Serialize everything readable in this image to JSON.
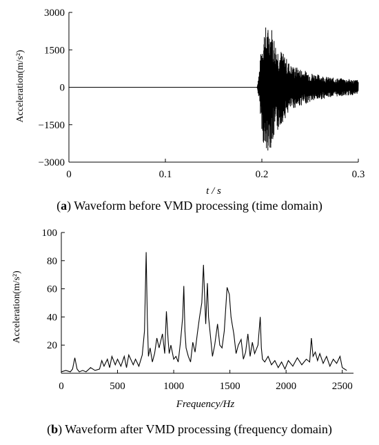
{
  "chart_data": [
    {
      "type": "line",
      "panel": "a",
      "caption_label": "a",
      "caption_text": "Waveform before VMD processing (time domain)",
      "xlabel": "t / s",
      "ylabel": "Acceleration(m/s²)",
      "xlim": [
        0,
        0.3
      ],
      "ylim": [
        -3000,
        3000
      ],
      "xticks": [
        0,
        0.1,
        0.2,
        0.3
      ],
      "xtick_labels": [
        "0",
        "0.1",
        "0.2",
        "0.3"
      ],
      "yticks": [
        -3000,
        -1500,
        0,
        1500,
        3000
      ],
      "ytick_labels": [
        "−3000",
        "−1500",
        "0",
        "1500",
        "3000"
      ],
      "grid": false,
      "series": [
        {
          "x": [
            0.0,
            0.195,
            0.197,
            0.2,
            0.203,
            0.206,
            0.21,
            0.215,
            0.22,
            0.23,
            0.25,
            0.27,
            0.3
          ],
          "envelope_max": [
            0,
            0,
            600,
            1800,
            2500,
            2400,
            2500,
            1700,
            1500,
            900,
            600,
            400,
            300
          ],
          "envelope_min": [
            0,
            0,
            -500,
            -1700,
            -2900,
            -2600,
            -2400,
            -1900,
            -1500,
            -900,
            -600,
            -400,
            -300
          ]
        }
      ]
    },
    {
      "type": "line",
      "panel": "b",
      "caption_label": "b",
      "caption_text": "Waveform after VMD processing (frequency domain)",
      "xlabel": "Frequency/Hz",
      "ylabel": "Acceleration(m/s²)",
      "xlim": [
        0,
        2600
      ],
      "ylim": [
        0,
        100
      ],
      "xticks": [
        0,
        500,
        1000,
        1500,
        2000,
        2500
      ],
      "xtick_labels": [
        "0",
        "500",
        "1000",
        "1500",
        "2000",
        "2500"
      ],
      "yticks": [
        20,
        40,
        60,
        80,
        100
      ],
      "ytick_labels": [
        "20",
        "40",
        "60",
        "80",
        "100"
      ],
      "grid": false,
      "series": [
        {
          "x": [
            0,
            40,
            80,
            100,
            120,
            140,
            160,
            190,
            220,
            260,
            300,
            340,
            360,
            380,
            410,
            430,
            450,
            480,
            500,
            530,
            560,
            580,
            600,
            640,
            660,
            690,
            720,
            740,
            755,
            765,
            775,
            790,
            810,
            830,
            850,
            870,
            900,
            920,
            935,
            950,
            960,
            975,
            1000,
            1020,
            1040,
            1060,
            1080,
            1090,
            1100,
            1110,
            1130,
            1150,
            1170,
            1190,
            1210,
            1230,
            1250,
            1265,
            1275,
            1285,
            1300,
            1310,
            1325,
            1345,
            1365,
            1390,
            1410,
            1430,
            1450,
            1475,
            1495,
            1510,
            1520,
            1535,
            1555,
            1575,
            1600,
            1620,
            1640,
            1660,
            1680,
            1700,
            1720,
            1750,
            1770,
            1780,
            1790,
            1810,
            1840,
            1870,
            1900,
            1930,
            1960,
            1990,
            2020,
            2060,
            2100,
            2140,
            2180,
            2210,
            2225,
            2240,
            2260,
            2280,
            2300,
            2330,
            2360,
            2390,
            2420,
            2450,
            2480,
            2500,
            2520,
            2540
          ],
          "y": [
            1,
            2,
            1,
            3,
            11,
            3,
            1,
            2,
            1,
            4,
            2,
            3,
            9,
            5,
            10,
            4,
            12,
            6,
            10,
            5,
            12,
            4,
            13,
            6,
            10,
            5,
            13,
            30,
            86,
            40,
            12,
            18,
            8,
            14,
            25,
            18,
            28,
            14,
            44,
            24,
            14,
            20,
            10,
            12,
            8,
            22,
            40,
            62,
            30,
            18,
            12,
            8,
            22,
            15,
            28,
            40,
            50,
            77,
            55,
            35,
            64,
            40,
            28,
            12,
            20,
            35,
            20,
            18,
            30,
            61,
            56,
            40,
            35,
            28,
            14,
            20,
            24,
            10,
            15,
            28,
            12,
            22,
            14,
            20,
            40,
            18,
            10,
            8,
            12,
            6,
            9,
            4,
            8,
            3,
            9,
            5,
            11,
            6,
            10,
            8,
            25,
            12,
            15,
            9,
            14,
            7,
            12,
            5,
            10,
            7,
            12,
            4,
            3,
            2
          ]
        }
      ]
    }
  ]
}
